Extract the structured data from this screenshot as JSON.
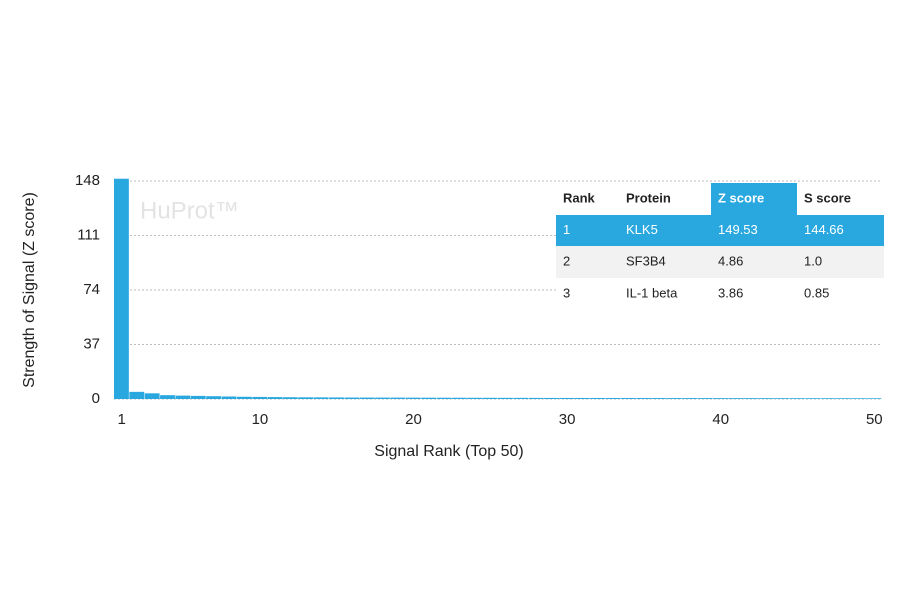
{
  "chart_data": {
    "type": "bar",
    "watermark": "HuProt™",
    "x_label": "Signal Rank (Top 50)",
    "y_label": "Strength of Signal (Z score)",
    "x": [
      1,
      2,
      3,
      4,
      5,
      6,
      7,
      8,
      9,
      10,
      11,
      12,
      13,
      14,
      15,
      16,
      17,
      18,
      19,
      20,
      21,
      22,
      23,
      24,
      25,
      26,
      27,
      28,
      29,
      30,
      31,
      32,
      33,
      34,
      35,
      36,
      37,
      38,
      39,
      40,
      41,
      42,
      43,
      44,
      45,
      46,
      47,
      48,
      49,
      50
    ],
    "values": [
      149.53,
      4.86,
      3.86,
      2.6,
      2.3,
      2.1,
      1.9,
      1.7,
      1.5,
      1.4,
      1.3,
      1.2,
      1.15,
      1.1,
      1.05,
      1.0,
      0.98,
      0.95,
      0.93,
      0.9,
      0.88,
      0.86,
      0.84,
      0.82,
      0.8,
      0.78,
      0.76,
      0.74,
      0.72,
      0.7,
      0.69,
      0.68,
      0.67,
      0.66,
      0.65,
      0.64,
      0.63,
      0.62,
      0.61,
      0.6,
      0.59,
      0.58,
      0.57,
      0.56,
      0.55,
      0.54,
      0.53,
      0.52,
      0.51,
      0.5
    ],
    "color": "#29a8df",
    "xlim": [
      0.5,
      50.5
    ],
    "xticks": [
      1,
      10,
      20,
      30,
      40,
      50
    ],
    "ylim": [
      0,
      148
    ],
    "yticks": [
      0,
      37,
      74,
      111,
      148
    ],
    "grid": true,
    "table": {
      "columns": [
        "Rank",
        "Protein",
        "Z score",
        "S score"
      ],
      "rows": [
        [
          "1",
          "KLK5",
          "149.53",
          "144.66"
        ],
        [
          "2",
          "SF3B4",
          "4.86",
          "1.0"
        ],
        [
          "3",
          "IL-1 beta",
          "3.86",
          "0.85"
        ]
      ],
      "highlight_row": 0,
      "highlight_column": 2,
      "highlight_color": "#29a8df",
      "stripe_color": "#f2f2f2"
    }
  }
}
